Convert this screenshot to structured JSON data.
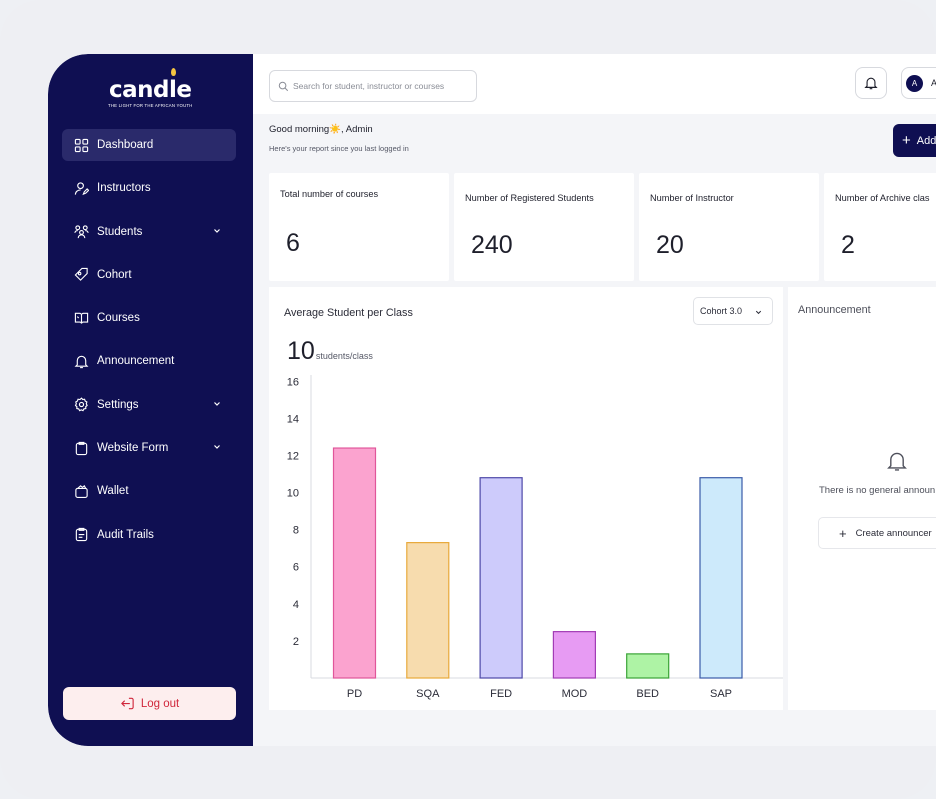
{
  "brand": {
    "name": "candle",
    "tagline": "THE LIGHT FOR THE AFRICAN YOUTH"
  },
  "sidebar": {
    "items": [
      {
        "label": "Dashboard",
        "icon": "grid-icon",
        "active": true
      },
      {
        "label": "Instructors",
        "icon": "user-edit-icon"
      },
      {
        "label": "Students",
        "icon": "users-icon",
        "expandable": true
      },
      {
        "label": "Cohort",
        "icon": "tag-icon"
      },
      {
        "label": "Courses",
        "icon": "book-icon"
      },
      {
        "label": "Announcement",
        "icon": "bell-icon"
      },
      {
        "label": "Settings",
        "icon": "gear-icon",
        "expandable": true
      },
      {
        "label": "Website Form",
        "icon": "clipboard-icon",
        "expandable": true
      },
      {
        "label": "Wallet",
        "icon": "wallet-icon"
      },
      {
        "label": "Audit Trails",
        "icon": "clipboard-list-icon"
      }
    ],
    "logout_label": "Log out"
  },
  "topbar": {
    "search_placeholder": "Search for student, instructor or courses",
    "profile_initial": "A",
    "profile_name": "A"
  },
  "greeting": {
    "text": "Good morning☀️, Admin",
    "sub": "Here's your report since you last logged in"
  },
  "add_button": {
    "label": "Add"
  },
  "stats": [
    {
      "label": "Total number of courses",
      "value": "6"
    },
    {
      "label": "Number of Registered Students",
      "value": "240"
    },
    {
      "label": "Number of Instructor",
      "value": "20"
    },
    {
      "label": "Number of Archive clas",
      "value": "2"
    }
  ],
  "chart": {
    "title": "Average Student per Class",
    "avg_value": "10",
    "avg_unit": "students/class",
    "cohort_select": "Cohort 3.0"
  },
  "chart_data": {
    "type": "bar",
    "categories": [
      "PD",
      "SQA",
      "FED",
      "MOD",
      "BED",
      "SAP"
    ],
    "values": [
      12.4,
      7.3,
      10.8,
      2.5,
      1.3,
      10.8
    ],
    "colors": [
      {
        "fill": "#fba3cf",
        "stroke": "#e0569a"
      },
      {
        "fill": "#f7dcae",
        "stroke": "#e8a93a"
      },
      {
        "fill": "#cdcbfb",
        "stroke": "#4d48a8"
      },
      {
        "fill": "#e79bf3",
        "stroke": "#a23cb5"
      },
      {
        "fill": "#aef3a5",
        "stroke": "#3aa336"
      },
      {
        "fill": "#cdeafb",
        "stroke": "#3a5aa8"
      }
    ],
    "yticks": [
      2,
      4,
      6,
      8,
      10,
      12,
      14,
      16
    ],
    "ylim": [
      0,
      16.5
    ]
  },
  "announcement": {
    "title": "Announcement",
    "empty_text": "There is no general announ",
    "create_label": "Create announcer"
  }
}
